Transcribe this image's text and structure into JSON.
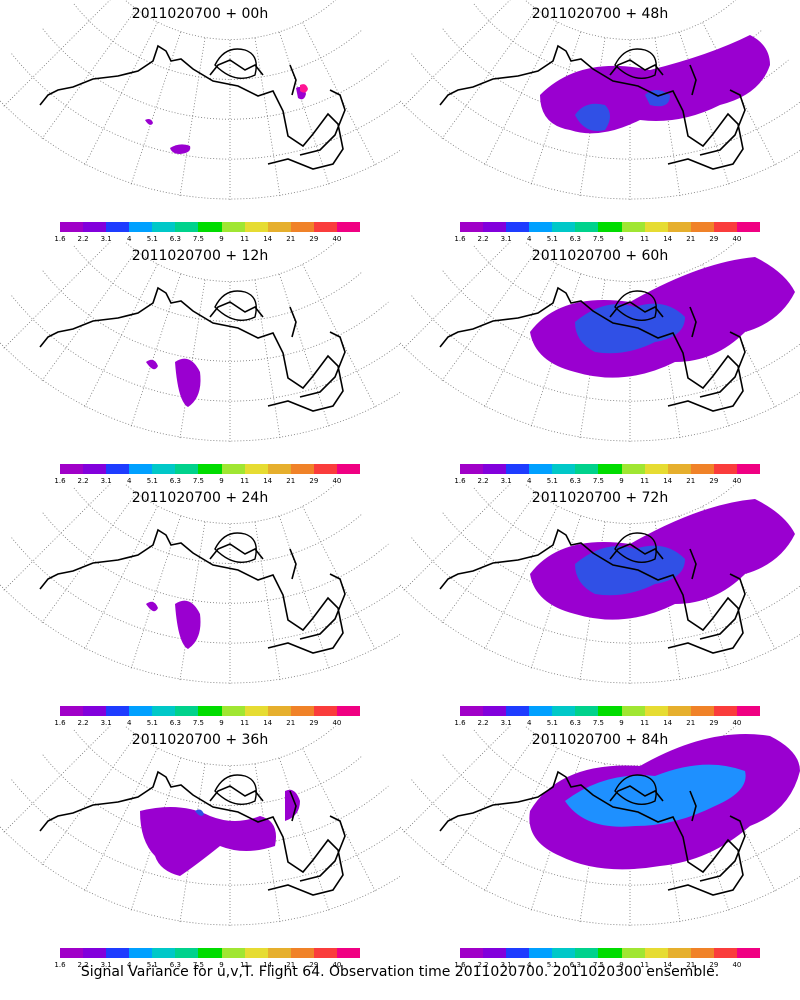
{
  "colorbar": {
    "colors": [
      "#a000c8",
      "#8200dc",
      "#1e3cff",
      "#00a0ff",
      "#00c8c8",
      "#00d28c",
      "#00dc00",
      "#a0e632",
      "#e6dc32",
      "#e6af2d",
      "#f08228",
      "#fa3c3c",
      "#f00082"
    ],
    "labels": [
      "1.6",
      "2.2",
      "3.1",
      "4",
      "5.1",
      "6.3",
      "7.5",
      "9",
      "11",
      "14",
      "21",
      "29",
      "40"
    ]
  },
  "panels": [
    {
      "title": "2011020700 + 00h",
      "level": 0
    },
    {
      "title": "2011020700 + 48h",
      "level": 3
    },
    {
      "title": "2011020700 + 12h",
      "level": 1
    },
    {
      "title": "2011020700 + 60h",
      "level": 4
    },
    {
      "title": "2011020700 + 24h",
      "level": 1
    },
    {
      "title": "2011020700 + 72h",
      "level": 4
    },
    {
      "title": "2011020700 + 36h",
      "level": 2
    },
    {
      "title": "2011020700 + 84h",
      "level": 5
    }
  ],
  "footer": "Signal Variance for u,v,T. Flight 64. Observation time 2011020700. 2011020300 ensemble."
}
